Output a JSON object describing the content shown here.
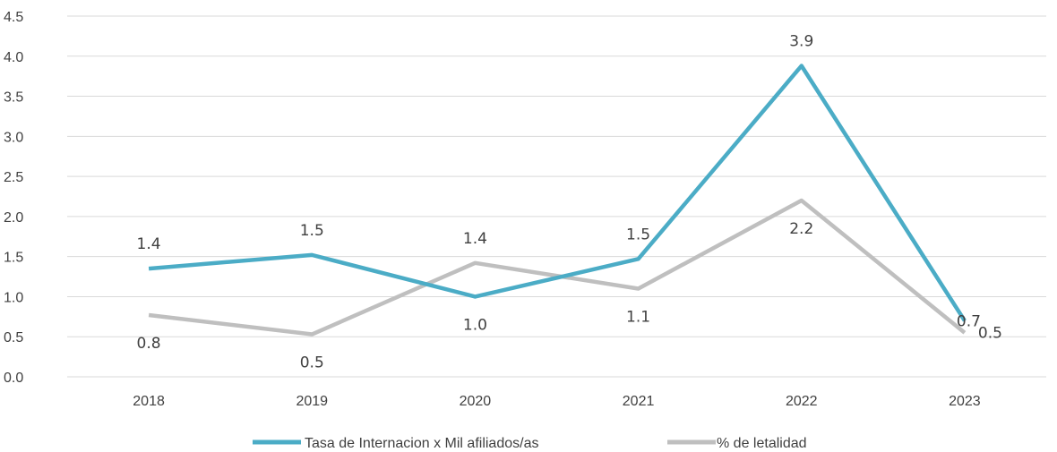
{
  "chart_data": {
    "type": "line",
    "categories": [
      "2018",
      "2019",
      "2020",
      "2021",
      "2022",
      "2023"
    ],
    "ylim": [
      0,
      4.5
    ],
    "yticks": [
      "0.0",
      "0.5",
      "1.0",
      "1.5",
      "2.0",
      "2.5",
      "3.0",
      "3.5",
      "4.0",
      "4.5"
    ],
    "grid": true,
    "legend_position": "bottom",
    "series": [
      {
        "name": "Tasa de Internacion x Mil afiliados/as",
        "color": "#4BACC6",
        "values": [
          1.35,
          1.52,
          1.0,
          1.47,
          3.88,
          0.7
        ],
        "labels": [
          "1.4",
          "1.5",
          "1.0",
          "1.5",
          "3.9",
          "0.7"
        ]
      },
      {
        "name": "% de letalidad",
        "color": "#BFBFBF",
        "values": [
          0.77,
          0.53,
          1.42,
          1.1,
          2.2,
          0.55
        ],
        "labels": [
          "0.8",
          "0.5",
          "1.4",
          "1.1",
          "2.2",
          "0.5"
        ]
      }
    ]
  }
}
